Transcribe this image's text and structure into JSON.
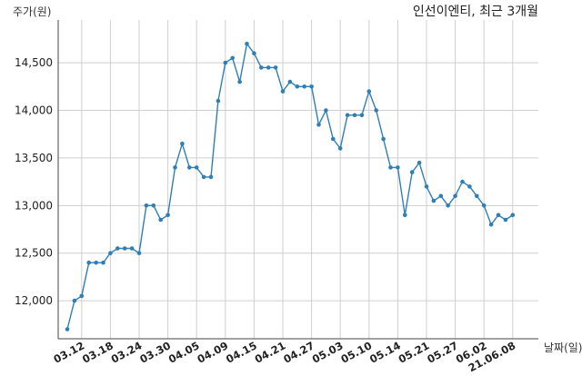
{
  "chart_data": {
    "type": "line",
    "title": "인선이엔티, 최근 3개월",
    "xlabel": "날짜(일)",
    "ylabel": "주가(원)",
    "ylim": [
      11600,
      14950
    ],
    "yticks": [
      12000,
      12500,
      13000,
      13500,
      14000,
      14500
    ],
    "ytick_labels": [
      "12,000",
      "12,500",
      "13,000",
      "13,500",
      "14,000",
      "14,500"
    ],
    "xtick_positions": [
      2,
      6,
      10,
      14,
      18,
      22,
      26,
      30,
      34,
      38,
      42,
      46,
      50,
      54,
      58,
      62
    ],
    "xtick_labels": [
      "03.12",
      "03.18",
      "03.24",
      "03.30",
      "04.05",
      "04.09",
      "04.15",
      "04.21",
      "04.27",
      "05.03",
      "05.10",
      "05.14",
      "05.21",
      "05.27",
      "06.02",
      "21.06.08"
    ],
    "grid": true,
    "line_color": "#2f7fb5",
    "series": [
      {
        "values": [
          11700,
          12000,
          12050,
          12400,
          12400,
          12400,
          12500,
          12550,
          12550,
          12550,
          12500,
          13000,
          13000,
          12850,
          12900,
          13400,
          13650,
          13400,
          13400,
          13300,
          13300,
          14100,
          14500,
          14550,
          14300,
          14700,
          14600,
          14450,
          14450,
          14450,
          14200,
          14300,
          14250,
          14250,
          14250,
          13850,
          14000,
          13700,
          13600,
          13950,
          13950,
          13950,
          14200,
          14000,
          13700,
          13400,
          13400,
          12900,
          13350,
          13450,
          13200,
          13050,
          13100,
          13000,
          13100,
          13250,
          13200,
          13100,
          13000,
          12800,
          12900,
          12850,
          12900
        ]
      }
    ]
  }
}
